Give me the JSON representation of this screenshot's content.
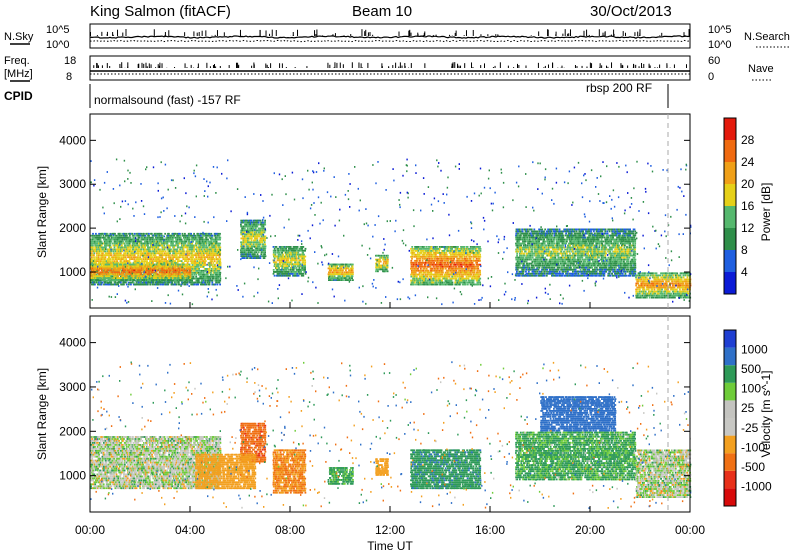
{
  "header": {
    "station": "King Salmon (fitACF)",
    "beam": "Beam 10",
    "date": "30/Oct/2013"
  },
  "panel_labels": {
    "nsky": "N.Sky",
    "nsearch": "N.Search",
    "freq": "Freq.",
    "freq_unit": "[MHz]",
    "nave": "Nave",
    "cpid": "CPID"
  },
  "cpid_labels": {
    "left": "normalsound (fast) -157 RF",
    "right": "rbsp 200 RF"
  },
  "top_ticks": {
    "noise_top": "10^5",
    "noise_bottom": "10^0",
    "freq_top": "18",
    "freq_bottom": "8",
    "nave_top": "60",
    "nave_bottom": "0"
  },
  "colors": {
    "power_scale": [
      "#0b1bd6",
      "#1f5fe0",
      "#2f8f4a",
      "#56b86e",
      "#e6d019",
      "#f0a018",
      "#f06a10",
      "#e41a0c"
    ],
    "velocity_scale": [
      "#1f3fd2",
      "#2f70c8",
      "#2e9a58",
      "#6fcc3a",
      "#c4c4c0",
      "#c8c8c4",
      "#f3a020",
      "#f07014",
      "#e8301a",
      "#d80a0a"
    ]
  },
  "chart_data": [
    {
      "type": "heatmap",
      "name": "power",
      "ylabel": "Slant Range [km]",
      "yticks": [
        "1000",
        "2000",
        "3000",
        "4000"
      ],
      "ylim": [
        180,
        4600
      ],
      "xlim": [
        0,
        24
      ],
      "colorbar_label": "Power [dB]",
      "colorbar_ticks": [
        "4",
        "8",
        "12",
        "16",
        "20",
        "24",
        "28"
      ],
      "colorbar_range": [
        0,
        32
      ],
      "regions": [
        {
          "t0": 0.0,
          "t1": 5.2,
          "r0": 700,
          "r1": 1900,
          "level": 20
        },
        {
          "t0": 0.0,
          "t1": 4.0,
          "r0": 800,
          "r1": 1200,
          "level": 27
        },
        {
          "t0": 6.0,
          "t1": 7.0,
          "r0": 1300,
          "r1": 2200,
          "level": 18
        },
        {
          "t0": 7.3,
          "t1": 8.6,
          "r0": 900,
          "r1": 1600,
          "level": 19
        },
        {
          "t0": 9.5,
          "t1": 10.5,
          "r0": 800,
          "r1": 1200,
          "level": 23
        },
        {
          "t0": 11.4,
          "t1": 11.9,
          "r0": 1000,
          "r1": 1400,
          "level": 22
        },
        {
          "t0": 12.8,
          "t1": 15.6,
          "r0": 700,
          "r1": 1600,
          "level": 27
        },
        {
          "t0": 17.0,
          "t1": 21.8,
          "r0": 900,
          "r1": 2000,
          "level": 16
        },
        {
          "t0": 21.8,
          "t1": 24.0,
          "r0": 400,
          "r1": 1000,
          "level": 24
        }
      ]
    },
    {
      "type": "heatmap",
      "name": "velocity",
      "ylabel": "Slant Range [km]",
      "yticks": [
        "1000",
        "2000",
        "3000",
        "4000"
      ],
      "ylim": [
        180,
        4600
      ],
      "xlabel": "Time UT",
      "xticks": [
        "00:00",
        "04:00",
        "08:00",
        "12:00",
        "16:00",
        "20:00",
        "00:00"
      ],
      "xlim": [
        0,
        24
      ],
      "colorbar_label": "Velocity [m s^-1]",
      "colorbar_ticks": [
        "1000",
        "500",
        "100",
        "25",
        "-25",
        "-100",
        "-500",
        "-1000"
      ],
      "colorbar_range": [
        -1250,
        1250
      ],
      "regions": [
        {
          "t0": 0.0,
          "t1": 5.2,
          "r0": 700,
          "r1": 1900,
          "level": 0
        },
        {
          "t0": 6.0,
          "t1": 7.0,
          "r0": 1300,
          "r1": 2200,
          "level": -900
        },
        {
          "t0": 4.2,
          "t1": 6.6,
          "r0": 700,
          "r1": 1500,
          "level": -300
        },
        {
          "t0": 7.3,
          "t1": 8.6,
          "r0": 600,
          "r1": 1600,
          "level": -500
        },
        {
          "t0": 9.5,
          "t1": 10.5,
          "r0": 800,
          "r1": 1200,
          "level": 150
        },
        {
          "t0": 11.4,
          "t1": 11.9,
          "r0": 1000,
          "r1": 1400,
          "level": -300
        },
        {
          "t0": 12.8,
          "t1": 15.6,
          "r0": 700,
          "r1": 1600,
          "level": 400
        },
        {
          "t0": 17.0,
          "t1": 21.8,
          "r0": 900,
          "r1": 2000,
          "level": 150
        },
        {
          "t0": 18.0,
          "t1": 21.0,
          "r0": 2000,
          "r1": 2800,
          "level": 800
        },
        {
          "t0": 21.8,
          "t1": 24.0,
          "r0": 500,
          "r1": 1600,
          "level": 0
        }
      ]
    }
  ]
}
